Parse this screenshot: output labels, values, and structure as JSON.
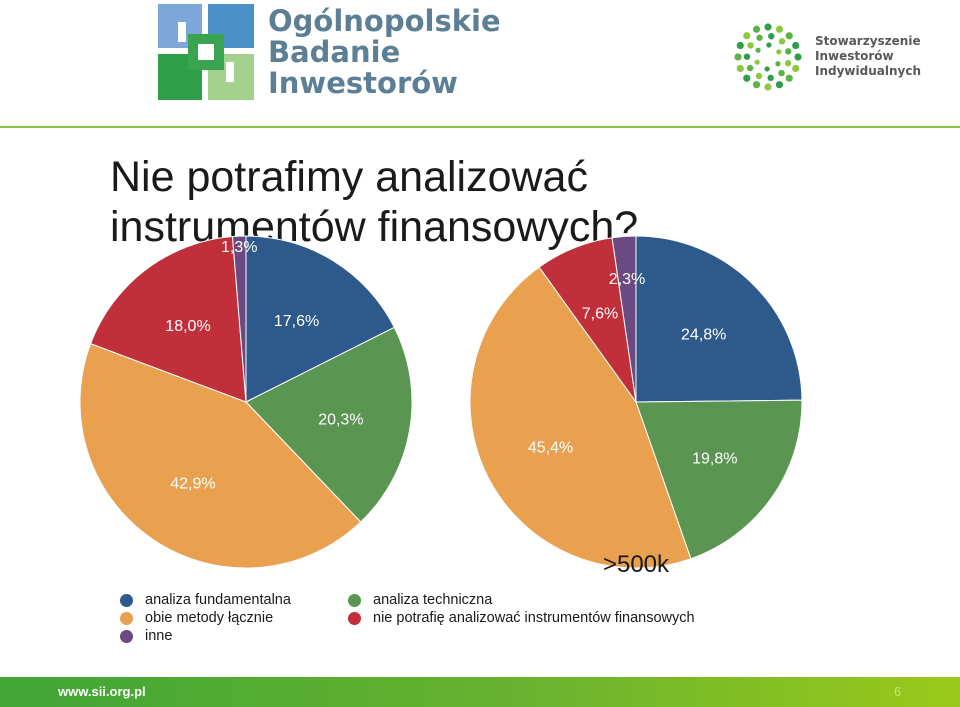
{
  "header": {
    "left_logo": {
      "icon": "obi-puzzle-logo",
      "lines": [
        "Ogólnopolskie",
        "Badanie",
        "Inwestorów"
      ]
    },
    "right_logo": {
      "icon": "sii-dotted-circle-logo",
      "lines": [
        "Stowarzyszenie",
        "Inwestorów",
        "Indywidualnych"
      ]
    }
  },
  "title_lines": [
    "Nie potrafimy analizować",
    "instrumentów finansowych?"
  ],
  "chart_data": [
    {
      "type": "pie",
      "subtitle": "",
      "slices": [
        {
          "label": "analiza fundamentalna",
          "value": 17.6,
          "text": "17,6%"
        },
        {
          "label": "analiza techniczna",
          "value": 20.3,
          "text": "20,3%"
        },
        {
          "label": "obie metody łącznie",
          "value": 42.9,
          "text": "42,9%"
        },
        {
          "label": "nie potrafię analizować instrumentów finansowych",
          "value": 18.0,
          "text": "18,0%"
        },
        {
          "label": "inne",
          "value": 1.3,
          "text": "1,3%"
        }
      ]
    },
    {
      "type": "pie",
      "subtitle": ">500k",
      "slices": [
        {
          "label": "analiza fundamentalna",
          "value": 24.8,
          "text": "24,8%"
        },
        {
          "label": "analiza techniczna",
          "value": 19.8,
          "text": "19,8%"
        },
        {
          "label": "obie metody łącznie",
          "value": 45.4,
          "text": "45,4%"
        },
        {
          "label": "nie potrafię analizować instrumentów finansowych",
          "value": 7.6,
          "text": "7,6%"
        },
        {
          "label": "inne",
          "value": 2.3,
          "text": "2,3%"
        }
      ]
    }
  ],
  "legend": [
    {
      "label": "analiza fundamentalna",
      "color": "#2d5a8a"
    },
    {
      "label": "analiza techniczna",
      "color": "#5a9651"
    },
    {
      "label": "obie metody łącznie",
      "color": "#e9a04f"
    },
    {
      "label": "nie potrafię analizować instrumentów finansowych",
      "color": "#c12f3b"
    },
    {
      "label": "inne",
      "color": "#6b4a82"
    }
  ],
  "colors": {
    "accent_rule": "#8dc63f",
    "footer_start": "#3fa535",
    "footer_end": "#9ac91a"
  },
  "footer": {
    "url": "www.sii.org.pl",
    "page": "6"
  }
}
